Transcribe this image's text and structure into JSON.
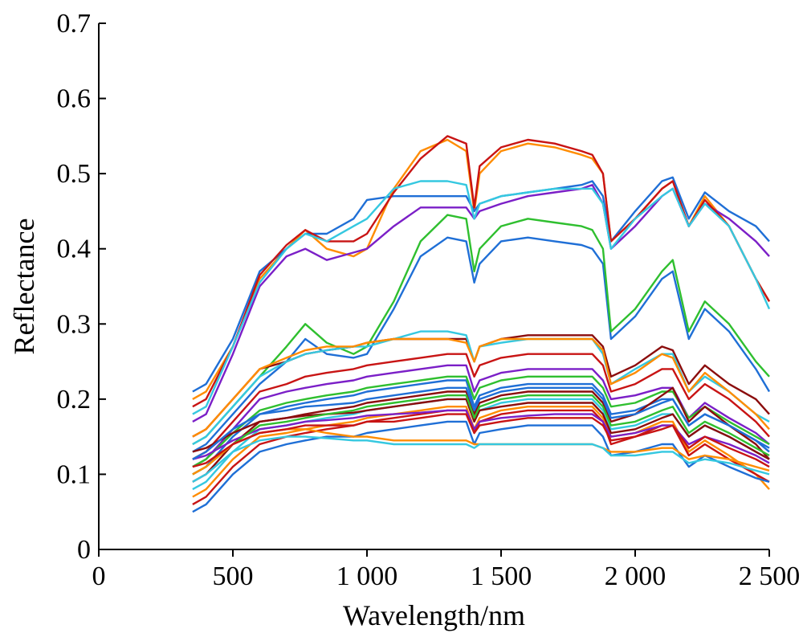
{
  "chart_data": {
    "type": "line",
    "title": "",
    "xlabel": "Wavelength/nm",
    "ylabel": "Reflectance",
    "xlim": [
      0,
      2500
    ],
    "ylim": [
      0,
      0.7
    ],
    "x_ticks": [
      0,
      500,
      1000,
      1500,
      2000,
      2500
    ],
    "x_tick_labels": [
      "0",
      "500",
      "1 000",
      "1 500",
      "2 000",
      "2 500"
    ],
    "y_ticks": [
      0,
      0.1,
      0.2,
      0.3,
      0.4,
      0.5,
      0.6,
      0.7
    ],
    "y_tick_labels": [
      "0",
      "0.1",
      "0.2",
      "0.3",
      "0.4",
      "0.5",
      "0.6",
      "0.7"
    ],
    "grid": false,
    "legend": "none",
    "x": [
      350,
      400,
      500,
      600,
      700,
      770,
      850,
      950,
      1000,
      1100,
      1200,
      1300,
      1370,
      1400,
      1420,
      1500,
      1600,
      1700,
      1800,
      1840,
      1880,
      1910,
      2000,
      2100,
      2140,
      2200,
      2260,
      2350,
      2450,
      2500
    ],
    "series": [
      {
        "color": "#ff8c00",
        "values": [
          0.2,
          0.21,
          0.27,
          0.36,
          0.4,
          0.425,
          0.4,
          0.39,
          0.4,
          0.48,
          0.53,
          0.545,
          0.53,
          0.45,
          0.5,
          0.53,
          0.54,
          0.535,
          0.525,
          0.52,
          0.5,
          0.41,
          0.44,
          0.48,
          0.49,
          0.43,
          0.47,
          0.43,
          0.36,
          0.33
        ]
      },
      {
        "color": "#1f6fd6",
        "values": [
          0.21,
          0.22,
          0.28,
          0.37,
          0.4,
          0.42,
          0.42,
          0.44,
          0.465,
          0.47,
          0.47,
          0.47,
          0.47,
          0.45,
          0.46,
          0.47,
          0.475,
          0.48,
          0.485,
          0.49,
          0.47,
          0.41,
          0.45,
          0.49,
          0.495,
          0.44,
          0.475,
          0.45,
          0.43,
          0.41
        ]
      },
      {
        "color": "#7b1fc7",
        "values": [
          0.17,
          0.18,
          0.26,
          0.35,
          0.39,
          0.4,
          0.385,
          0.395,
          0.4,
          0.43,
          0.455,
          0.455,
          0.455,
          0.44,
          0.45,
          0.46,
          0.47,
          0.475,
          0.48,
          0.485,
          0.46,
          0.4,
          0.43,
          0.47,
          0.48,
          0.43,
          0.46,
          0.44,
          0.41,
          0.39
        ]
      },
      {
        "color": "#c81414",
        "values": [
          0.19,
          0.2,
          0.27,
          0.365,
          0.405,
          0.425,
          0.41,
          0.41,
          0.42,
          0.475,
          0.52,
          0.55,
          0.54,
          0.455,
          0.51,
          0.535,
          0.545,
          0.54,
          0.53,
          0.525,
          0.5,
          0.41,
          0.44,
          0.48,
          0.49,
          0.43,
          0.465,
          0.43,
          0.36,
          0.33
        ]
      },
      {
        "color": "#35c8e0",
        "values": [
          0.18,
          0.19,
          0.27,
          0.355,
          0.4,
          0.42,
          0.41,
          0.43,
          0.44,
          0.48,
          0.49,
          0.49,
          0.485,
          0.44,
          0.46,
          0.47,
          0.475,
          0.48,
          0.48,
          0.48,
          0.46,
          0.4,
          0.44,
          0.47,
          0.48,
          0.43,
          0.46,
          0.43,
          0.36,
          0.32
        ]
      },
      {
        "color": "#1f6fd6",
        "values": [
          0.13,
          0.14,
          0.18,
          0.22,
          0.25,
          0.28,
          0.26,
          0.255,
          0.26,
          0.32,
          0.39,
          0.415,
          0.41,
          0.355,
          0.38,
          0.41,
          0.415,
          0.41,
          0.405,
          0.4,
          0.38,
          0.28,
          0.31,
          0.36,
          0.37,
          0.28,
          0.32,
          0.29,
          0.24,
          0.21
        ]
      },
      {
        "color": "#2fbf2f",
        "values": [
          0.14,
          0.15,
          0.19,
          0.23,
          0.27,
          0.3,
          0.275,
          0.26,
          0.27,
          0.33,
          0.41,
          0.445,
          0.44,
          0.37,
          0.4,
          0.43,
          0.44,
          0.435,
          0.43,
          0.425,
          0.4,
          0.29,
          0.32,
          0.37,
          0.385,
          0.29,
          0.33,
          0.3,
          0.25,
          0.23
        ]
      },
      {
        "color": "#8b0d0d",
        "values": [
          0.15,
          0.16,
          0.2,
          0.24,
          0.25,
          0.26,
          0.265,
          0.27,
          0.275,
          0.28,
          0.28,
          0.28,
          0.28,
          0.25,
          0.27,
          0.28,
          0.285,
          0.285,
          0.285,
          0.285,
          0.27,
          0.23,
          0.245,
          0.27,
          0.265,
          0.22,
          0.245,
          0.22,
          0.2,
          0.18
        ]
      },
      {
        "color": "#35c8e0",
        "values": [
          0.14,
          0.15,
          0.19,
          0.23,
          0.25,
          0.26,
          0.265,
          0.27,
          0.27,
          0.28,
          0.29,
          0.29,
          0.285,
          0.25,
          0.27,
          0.275,
          0.28,
          0.28,
          0.28,
          0.28,
          0.26,
          0.22,
          0.24,
          0.26,
          0.26,
          0.21,
          0.23,
          0.21,
          0.18,
          0.17
        ]
      },
      {
        "color": "#ff8c00",
        "values": [
          0.15,
          0.16,
          0.2,
          0.24,
          0.255,
          0.265,
          0.27,
          0.27,
          0.275,
          0.28,
          0.28,
          0.28,
          0.275,
          0.25,
          0.27,
          0.28,
          0.28,
          0.28,
          0.28,
          0.28,
          0.265,
          0.22,
          0.235,
          0.26,
          0.255,
          0.21,
          0.235,
          0.21,
          0.18,
          0.16
        ]
      },
      {
        "color": "#c81414",
        "values": [
          0.12,
          0.13,
          0.17,
          0.21,
          0.22,
          0.23,
          0.235,
          0.24,
          0.245,
          0.25,
          0.255,
          0.26,
          0.26,
          0.23,
          0.245,
          0.255,
          0.26,
          0.26,
          0.26,
          0.26,
          0.245,
          0.21,
          0.22,
          0.24,
          0.24,
          0.2,
          0.22,
          0.2,
          0.17,
          0.15
        ]
      },
      {
        "color": "#7b1fc7",
        "values": [
          0.11,
          0.12,
          0.16,
          0.2,
          0.21,
          0.215,
          0.22,
          0.225,
          0.23,
          0.235,
          0.24,
          0.245,
          0.245,
          0.21,
          0.225,
          0.235,
          0.24,
          0.24,
          0.24,
          0.24,
          0.225,
          0.2,
          0.205,
          0.215,
          0.215,
          0.175,
          0.195,
          0.175,
          0.155,
          0.14
        ]
      },
      {
        "color": "#1f6fd6",
        "values": [
          0.1,
          0.11,
          0.15,
          0.18,
          0.19,
          0.195,
          0.2,
          0.205,
          0.21,
          0.215,
          0.22,
          0.225,
          0.225,
          0.19,
          0.205,
          0.215,
          0.22,
          0.22,
          0.22,
          0.22,
          0.205,
          0.18,
          0.185,
          0.2,
          0.2,
          0.165,
          0.18,
          0.165,
          0.145,
          0.13
        ]
      },
      {
        "color": "#2fbf2f",
        "values": [
          0.11,
          0.12,
          0.155,
          0.185,
          0.195,
          0.2,
          0.205,
          0.21,
          0.215,
          0.22,
          0.225,
          0.23,
          0.23,
          0.2,
          0.215,
          0.225,
          0.23,
          0.23,
          0.23,
          0.23,
          0.215,
          0.19,
          0.195,
          0.21,
          0.21,
          0.175,
          0.19,
          0.17,
          0.15,
          0.14
        ]
      },
      {
        "color": "#8b0d0d",
        "values": [
          0.09,
          0.1,
          0.14,
          0.17,
          0.175,
          0.18,
          0.185,
          0.19,
          0.195,
          0.2,
          0.205,
          0.21,
          0.21,
          0.18,
          0.195,
          0.205,
          0.21,
          0.21,
          0.21,
          0.21,
          0.195,
          0.17,
          0.18,
          0.205,
          0.215,
          0.17,
          0.19,
          0.165,
          0.14,
          0.12
        ]
      },
      {
        "color": "#35c8e0",
        "values": [
          0.08,
          0.09,
          0.13,
          0.16,
          0.165,
          0.17,
          0.175,
          0.18,
          0.185,
          0.19,
          0.195,
          0.2,
          0.2,
          0.17,
          0.185,
          0.195,
          0.2,
          0.2,
          0.2,
          0.2,
          0.185,
          0.16,
          0.165,
          0.18,
          0.18,
          0.15,
          0.165,
          0.15,
          0.13,
          0.12
        ]
      },
      {
        "color": "#ff8c00",
        "values": [
          0.07,
          0.08,
          0.12,
          0.15,
          0.155,
          0.16,
          0.165,
          0.17,
          0.175,
          0.18,
          0.185,
          0.19,
          0.19,
          0.16,
          0.175,
          0.185,
          0.19,
          0.19,
          0.19,
          0.19,
          0.175,
          0.15,
          0.155,
          0.17,
          0.17,
          0.13,
          0.145,
          0.125,
          0.1,
          0.08
        ]
      },
      {
        "color": "#c81414",
        "values": [
          0.06,
          0.07,
          0.11,
          0.14,
          0.15,
          0.155,
          0.16,
          0.165,
          0.17,
          0.175,
          0.18,
          0.185,
          0.185,
          0.155,
          0.17,
          0.18,
          0.185,
          0.185,
          0.185,
          0.185,
          0.17,
          0.14,
          0.15,
          0.165,
          0.165,
          0.125,
          0.14,
          0.12,
          0.1,
          0.09
        ]
      },
      {
        "color": "#1f6fd6",
        "values": [
          0.05,
          0.06,
          0.1,
          0.13,
          0.14,
          0.145,
          0.15,
          0.15,
          0.155,
          0.16,
          0.165,
          0.17,
          0.17,
          0.14,
          0.155,
          0.16,
          0.165,
          0.165,
          0.165,
          0.165,
          0.15,
          0.125,
          0.13,
          0.14,
          0.14,
          0.11,
          0.125,
          0.11,
          0.095,
          0.09
        ]
      },
      {
        "color": "#7b1fc7",
        "values": [
          0.12,
          0.125,
          0.145,
          0.16,
          0.165,
          0.17,
          0.172,
          0.175,
          0.178,
          0.18,
          0.182,
          0.185,
          0.185,
          0.16,
          0.17,
          0.175,
          0.178,
          0.18,
          0.18,
          0.18,
          0.17,
          0.15,
          0.155,
          0.165,
          0.165,
          0.14,
          0.15,
          0.14,
          0.125,
          0.115
        ]
      },
      {
        "color": "#8b0d0d",
        "values": [
          0.13,
          0.135,
          0.155,
          0.17,
          0.175,
          0.178,
          0.18,
          0.182,
          0.185,
          0.19,
          0.195,
          0.2,
          0.2,
          0.17,
          0.185,
          0.19,
          0.195,
          0.195,
          0.195,
          0.195,
          0.18,
          0.155,
          0.16,
          0.175,
          0.18,
          0.15,
          0.165,
          0.15,
          0.13,
          0.12
        ]
      },
      {
        "color": "#2fbf2f",
        "values": [
          0.1,
          0.11,
          0.14,
          0.165,
          0.17,
          0.175,
          0.18,
          0.185,
          0.19,
          0.195,
          0.2,
          0.205,
          0.205,
          0.175,
          0.19,
          0.2,
          0.205,
          0.205,
          0.205,
          0.205,
          0.19,
          0.165,
          0.17,
          0.185,
          0.19,
          0.155,
          0.17,
          0.155,
          0.135,
          0.125
        ]
      },
      {
        "color": "#ff8c00",
        "values": [
          0.1,
          0.11,
          0.14,
          0.155,
          0.16,
          0.16,
          0.155,
          0.15,
          0.15,
          0.145,
          0.145,
          0.145,
          0.145,
          0.14,
          0.14,
          0.14,
          0.14,
          0.14,
          0.14,
          0.14,
          0.135,
          0.13,
          0.13,
          0.135,
          0.135,
          0.12,
          0.125,
          0.12,
          0.11,
          0.105
        ]
      },
      {
        "color": "#35c8e0",
        "values": [
          0.09,
          0.1,
          0.13,
          0.145,
          0.15,
          0.15,
          0.148,
          0.145,
          0.145,
          0.14,
          0.14,
          0.14,
          0.14,
          0.135,
          0.14,
          0.14,
          0.14,
          0.14,
          0.14,
          0.14,
          0.135,
          0.125,
          0.125,
          0.13,
          0.13,
          0.115,
          0.12,
          0.115,
          0.105,
          0.1
        ]
      },
      {
        "color": "#c81414",
        "values": [
          0.11,
          0.115,
          0.14,
          0.155,
          0.16,
          0.165,
          0.165,
          0.165,
          0.17,
          0.17,
          0.175,
          0.18,
          0.18,
          0.155,
          0.165,
          0.17,
          0.175,
          0.175,
          0.175,
          0.175,
          0.165,
          0.145,
          0.15,
          0.16,
          0.165,
          0.135,
          0.15,
          0.135,
          0.12,
          0.11
        ]
      },
      {
        "color": "#1f6fd6",
        "values": [
          0.12,
          0.13,
          0.16,
          0.18,
          0.185,
          0.19,
          0.192,
          0.195,
          0.2,
          0.205,
          0.21,
          0.215,
          0.215,
          0.185,
          0.2,
          0.21,
          0.215,
          0.215,
          0.215,
          0.215,
          0.2,
          0.175,
          0.18,
          0.195,
          0.2,
          0.165,
          0.18,
          0.165,
          0.145,
          0.135
        ]
      }
    ]
  }
}
